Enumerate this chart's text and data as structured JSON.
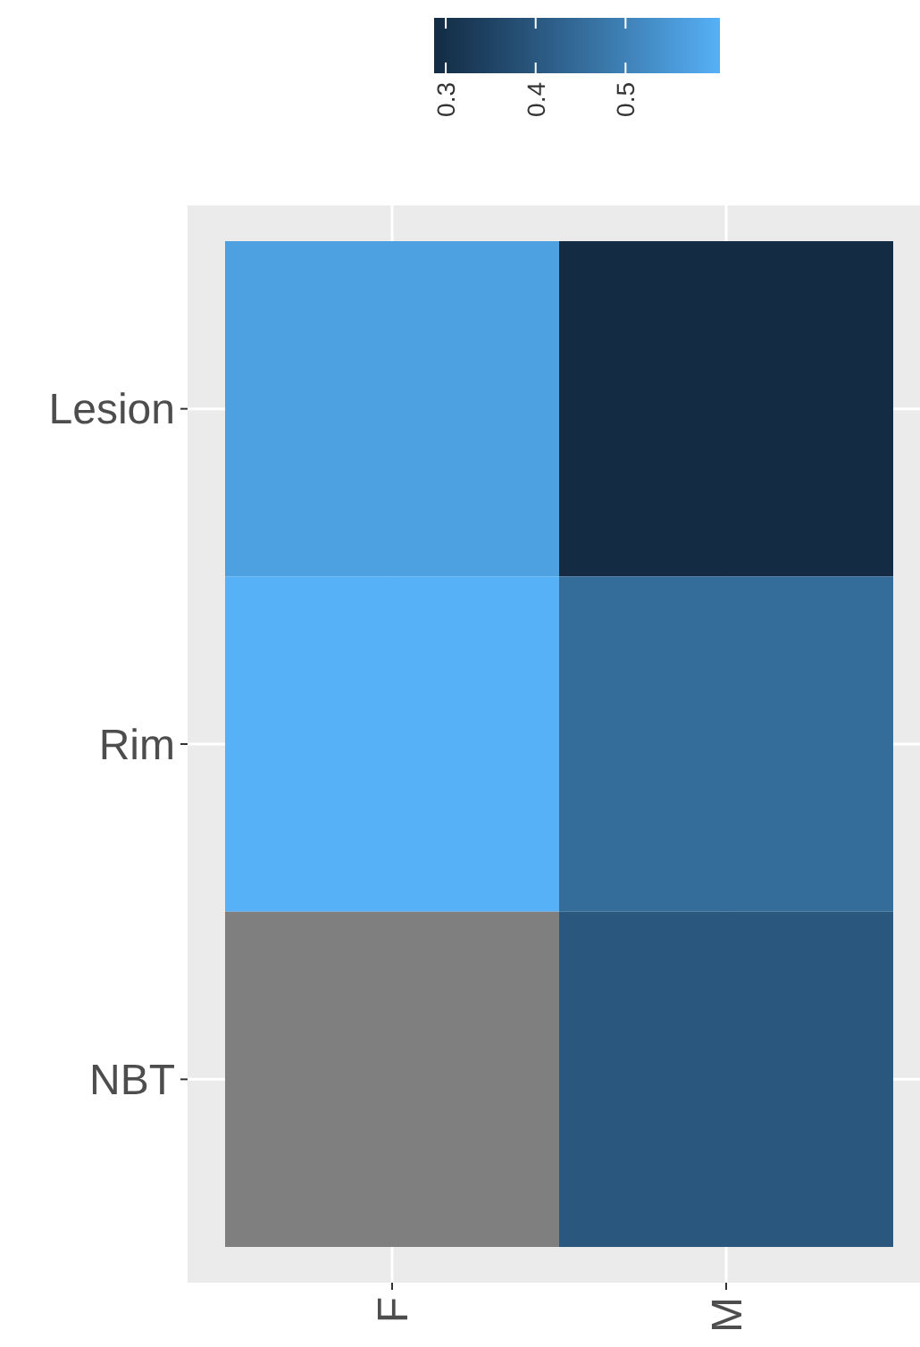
{
  "chart_data": {
    "type": "heatmap",
    "categories": [
      "F",
      "M"
    ],
    "y_categories": [
      "Lesion",
      "Rim",
      "NBT"
    ],
    "cells": [
      [
        0.57,
        0.287
      ],
      [
        0.605,
        0.45
      ],
      [
        null,
        0.4
      ]
    ],
    "clim": [
      0.287,
      0.605
    ],
    "cticks": [
      0.3,
      0.4,
      0.5
    ],
    "colors": [
      "#132b43",
      "#56b1f7"
    ],
    "grid": true
  }
}
